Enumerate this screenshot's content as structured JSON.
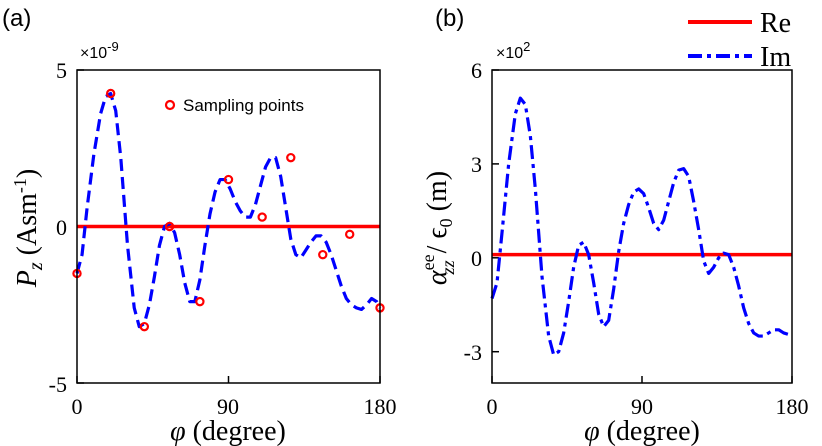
{
  "colors": {
    "re": "#ff0000",
    "im": "#0000ff",
    "axis": "#000000",
    "sampling": "#ff0000"
  },
  "chart_data": [
    {
      "type": "line",
      "panel_label": "(a)",
      "multiplier": "×10",
      "multiplier_exp": "-9",
      "ylabel_main": "P",
      "ylabel_sub": "z",
      "ylabel_unit_open": " (Asm",
      "ylabel_unit_exp": "-1",
      "ylabel_unit_close": ")",
      "xlabel_symbol": "φ",
      "xlabel_text": " (degree)",
      "xlim": [
        0,
        180
      ],
      "ylim": [
        -5,
        5
      ],
      "xticks": [
        0,
        90,
        180
      ],
      "xtick_labels": [
        "0",
        "90",
        "180"
      ],
      "yticks": [
        -5,
        0,
        5
      ],
      "ytick_labels": [
        "-5",
        "0",
        "5"
      ],
      "series": [
        {
          "name": "Re",
          "style": "solid",
          "x": [
            0,
            180
          ],
          "y": [
            0.0,
            0.0
          ]
        },
        {
          "name": "Im",
          "style": "dash",
          "x": [
            0,
            3,
            6,
            10,
            14,
            17,
            20,
            23,
            26,
            30,
            34,
            37,
            40,
            43,
            46,
            49,
            52,
            55,
            58,
            61,
            64,
            67,
            70,
            73,
            76,
            79,
            82,
            85,
            88,
            91,
            94,
            97,
            100,
            103,
            106,
            109,
            112,
            115,
            118,
            121,
            124,
            127,
            130,
            133,
            136,
            139,
            142,
            145,
            148,
            151,
            154,
            157,
            160,
            163,
            166,
            169,
            172,
            175,
            178,
            180
          ],
          "y": [
            -1.5,
            -0.9,
            0.6,
            2.3,
            3.6,
            4.15,
            4.25,
            3.7,
            2.2,
            -0.6,
            -2.6,
            -3.2,
            -3.1,
            -2.5,
            -1.6,
            -0.6,
            0.0,
            0.1,
            -0.2,
            -0.9,
            -1.8,
            -2.4,
            -2.4,
            -1.7,
            -0.6,
            0.4,
            1.1,
            1.5,
            1.5,
            1.2,
            0.8,
            0.5,
            0.3,
            0.3,
            0.7,
            1.3,
            1.9,
            2.2,
            2.2,
            1.6,
            0.6,
            -0.4,
            -0.9,
            -1.0,
            -0.75,
            -0.5,
            -0.3,
            -0.3,
            -0.5,
            -0.9,
            -1.4,
            -1.9,
            -2.3,
            -2.5,
            -2.6,
            -2.65,
            -2.5,
            -2.3,
            -2.4,
            -2.6
          ]
        }
      ],
      "sampling_points": {
        "label": "Sampling points",
        "x": [
          0,
          20,
          40,
          55,
          73,
          90,
          110,
          127,
          146,
          162,
          180
        ],
        "y": [
          -1.5,
          4.25,
          -3.2,
          0.0,
          -2.4,
          1.5,
          0.3,
          2.2,
          -0.9,
          -0.25,
          -2.6
        ]
      }
    },
    {
      "type": "line",
      "panel_label": "(b)",
      "multiplier": "×10",
      "multiplier_exp": "2",
      "ylabel_alpha": "α",
      "ylabel_sup": "ee",
      "ylabel_sub": "zz",
      "ylabel_rest_slash": " / ",
      "ylabel_eps": "ϵ",
      "ylabel_eps_sub": "0",
      "ylabel_unit": " (m)",
      "xlabel_symbol": "φ",
      "xlabel_text": " (degree)",
      "xlim": [
        0,
        180
      ],
      "ylim": [
        -4,
        6
      ],
      "xticks": [
        0,
        90,
        180
      ],
      "xtick_labels": [
        "0",
        "90",
        "180"
      ],
      "yticks": [
        -3,
        0,
        3,
        6
      ],
      "ytick_labels": [
        "-3",
        "0",
        "3",
        "6"
      ],
      "series": [
        {
          "name": "Re",
          "style": "solid",
          "x": [
            0,
            180
          ],
          "y": [
            0.1,
            0.1
          ]
        },
        {
          "name": "Im",
          "style": "dashdot",
          "x": [
            0,
            3,
            6,
            10,
            14,
            17,
            20,
            23,
            26,
            30,
            34,
            37,
            40,
            43,
            46,
            49,
            52,
            55,
            58,
            61,
            64,
            67,
            70,
            73,
            76,
            79,
            82,
            85,
            88,
            91,
            94,
            97,
            100,
            103,
            106,
            109,
            112,
            115,
            118,
            121,
            124,
            127,
            130,
            133,
            136,
            139,
            142,
            145,
            148,
            151,
            154,
            157,
            160,
            163,
            166,
            169,
            172,
            175,
            178,
            180
          ],
          "y": [
            -1.3,
            -0.8,
            0.8,
            3.0,
            4.6,
            5.1,
            4.9,
            3.9,
            2.2,
            -0.6,
            -2.5,
            -3.1,
            -3.0,
            -2.4,
            -1.4,
            -0.3,
            0.4,
            0.5,
            0.1,
            -0.8,
            -1.8,
            -2.2,
            -2.0,
            -1.0,
            0.2,
            1.1,
            1.7,
            2.1,
            2.2,
            2.05,
            1.6,
            1.1,
            0.9,
            1.2,
            1.8,
            2.4,
            2.8,
            2.85,
            2.6,
            1.8,
            0.9,
            -0.1,
            -0.5,
            -0.3,
            0.0,
            0.15,
            0.1,
            -0.3,
            -0.9,
            -1.6,
            -2.1,
            -2.4,
            -2.5,
            -2.5,
            -2.4,
            -2.3,
            -2.3,
            -2.4,
            -2.45,
            -2.5
          ]
        }
      ],
      "legend": [
        {
          "label": "Re",
          "style": "solid"
        },
        {
          "label": "Im",
          "style": "dashdot"
        }
      ]
    }
  ]
}
